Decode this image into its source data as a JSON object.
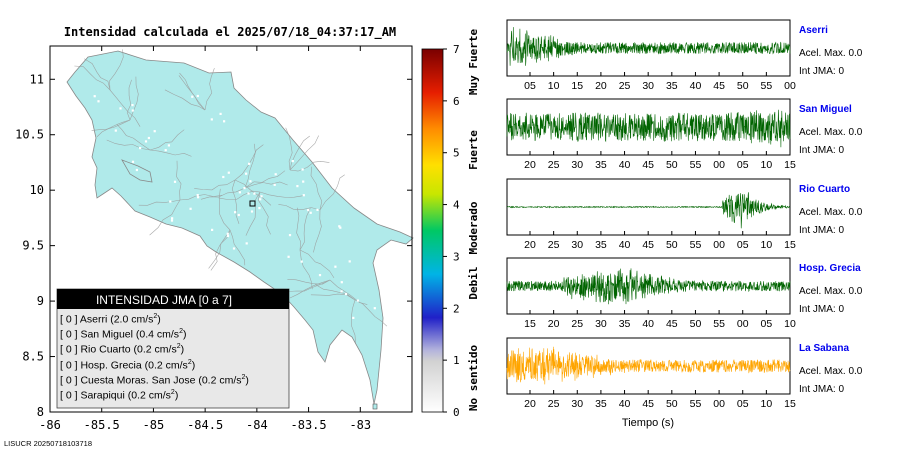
{
  "title": "Intensidad calculada el 2025/07/18_04:37:17_AM",
  "footer_id": "LISUCR 20250718103718",
  "map": {
    "lon_ticks": [
      "-86",
      "-85.5",
      "-85",
      "-84.5",
      "-84",
      "-83.5",
      "-83"
    ],
    "lat_ticks": [
      "11",
      "10.5",
      "10",
      "9.5",
      "9",
      "8.5",
      "8"
    ],
    "lon_range": [
      -86.0,
      -82.5
    ],
    "lat_range": [
      8.0,
      11.3
    ],
    "land_color": "#b0eaea"
  },
  "legend": {
    "title": "INTENSIDAD JMA [0 a 7]",
    "rows": [
      {
        "bracket": "[ 0 ]",
        "text": "Aserri (2.0 cm/s",
        "sup": "2",
        "close": ")"
      },
      {
        "bracket": "[ 0 ]",
        "text": "San Miguel (0.4 cm/s",
        "sup": "2",
        "close": ")"
      },
      {
        "bracket": "[ 0 ]",
        "text": "Rio Cuarto (0.2 cm/s",
        "sup": "2",
        "close": ")"
      },
      {
        "bracket": "[ 0 ]",
        "text": "Hosp. Grecia (0.2 cm/s",
        "sup": "2",
        "close": ")"
      },
      {
        "bracket": "[ 0 ]",
        "text": "Cuesta Moras. San Jose (0.2 cm/s",
        "sup": "2",
        "close": ")"
      },
      {
        "bracket": "[ 0 ]",
        "text": "Sarapiqui (0.2 cm/s",
        "sup": "2",
        "close": ")"
      }
    ]
  },
  "colorbar": {
    "ticks": [
      "0",
      "1",
      "2",
      "3",
      "4",
      "5",
      "6",
      "7"
    ],
    "categories": [
      "No sentido",
      "Debil",
      "Moderado",
      "Fuerte",
      "Muy Fuerte"
    ]
  },
  "waveform_xlabel": "Tiempo (s)",
  "chart_data": {
    "type": "line",
    "title": "Intensidad calculada el 2025/07/18_04:37:17_AM",
    "xlabel": "Tiempo (s)",
    "series": [
      {
        "name": "Aserri",
        "accel_label": "Acel. Max. 0.0",
        "jma_label": "Int JMA: 0",
        "color": "#006400",
        "ticks": [
          "05",
          "10",
          "15",
          "20",
          "25",
          "30",
          "35",
          "40",
          "45",
          "50",
          "55",
          "00"
        ],
        "envelope": {
          "onset": 0.01,
          "peak": 0.03,
          "amp": 0.95,
          "decay": 0.18,
          "noise": 0.22
        }
      },
      {
        "name": "San Miguel",
        "accel_label": "Acel. Max. 0.0",
        "jma_label": "Int JMA: 0",
        "color": "#006400",
        "ticks": [
          "20",
          "25",
          "30",
          "35",
          "40",
          "45",
          "50",
          "55",
          "00",
          "05",
          "10",
          "15"
        ],
        "envelope": {
          "onset": 0.0,
          "peak": 0.92,
          "amp": 0.85,
          "decay": 0.4,
          "noise": 0.55
        }
      },
      {
        "name": "Rio Cuarto",
        "accel_label": "Acel. Max. 0.0",
        "jma_label": "Int JMA: 0",
        "color": "#006400",
        "ticks": [
          "20",
          "25",
          "30",
          "35",
          "40",
          "45",
          "50",
          "55",
          "00",
          "05",
          "10",
          "15"
        ],
        "envelope": {
          "onset": 0.76,
          "peak": 0.82,
          "amp": 0.95,
          "decay": 0.06,
          "noise": 0.02
        }
      },
      {
        "name": "Hosp. Grecia",
        "accel_label": "Acel. Max. 0.0",
        "jma_label": "Int JMA: 0",
        "color": "#006400",
        "ticks": [
          "15",
          "20",
          "25",
          "30",
          "35",
          "40",
          "45",
          "50",
          "55",
          "00",
          "05",
          "10"
        ],
        "envelope": {
          "onset": 0.2,
          "peak": 0.37,
          "amp": 0.95,
          "decay": 0.22,
          "noise": 0.2
        }
      },
      {
        "name": "La Sabana",
        "accel_label": "Acel. Max. 0.0",
        "jma_label": "Int JMA: 0",
        "color": "#ffa500",
        "ticks": [
          "20",
          "25",
          "30",
          "35",
          "40",
          "45",
          "50",
          "55",
          "00",
          "05",
          "10",
          "15"
        ],
        "envelope": {
          "onset": 0.0,
          "peak": 0.12,
          "amp": 0.95,
          "decay": 0.25,
          "noise": 0.25
        }
      }
    ]
  }
}
